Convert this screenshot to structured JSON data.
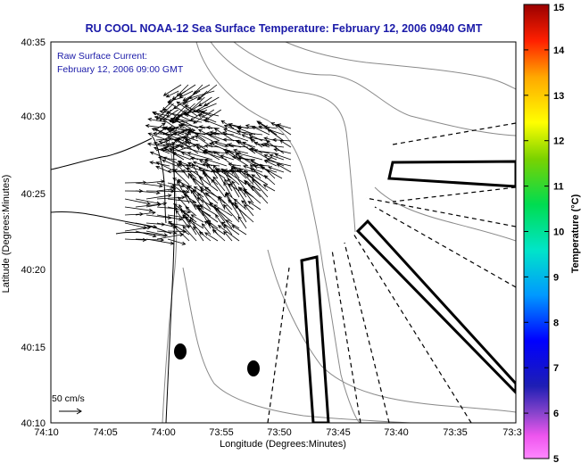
{
  "title": "RU COOL  NOAA-12  Sea Surface Temperature:  February 12, 2006 0940 GMT",
  "current_note_line1": "Raw Surface Current:",
  "current_note_line2": "February 12, 2006 09:00 GMT",
  "x_axis_label": "Longitude (Degrees:Minutes)",
  "y_axis_label": "Latitude (Degrees:Minutes)",
  "x_ticks": [
    "74:10",
    "74:05",
    "74:00",
    "73:55",
    "73:50",
    "73:45",
    "73:40",
    "73:35",
    "73:3"
  ],
  "y_ticks": [
    "40:35",
    "40:30",
    "40:25",
    "40:20",
    "40:15",
    "40:10"
  ],
  "scale_label": "50 cm/s",
  "colorbar": {
    "label": "Temperature (°C)",
    "ticks": [
      "15",
      "14",
      "13",
      "12",
      "11",
      "10",
      "9",
      "8",
      "7",
      "6",
      "5"
    ],
    "min": 5,
    "max": 15
  },
  "colors": {
    "title": "#1a1aa8",
    "land": "#ffffff",
    "coast": "#000000",
    "bathymetry": "#8a8a8a"
  }
}
